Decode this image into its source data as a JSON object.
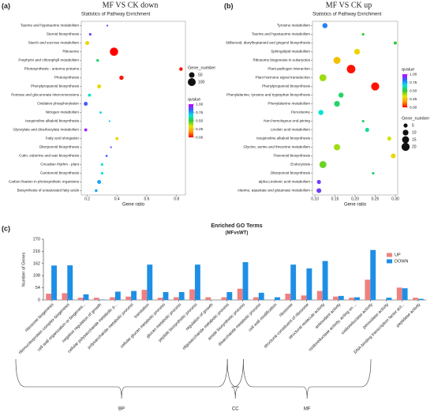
{
  "chart_data": [
    {
      "type": "scatter",
      "panel_label": "(a)",
      "title": "MF VS CK down",
      "subtitle": "Statistics of Pathway Enrichment",
      "x_label": "Gene ratio",
      "categories": [
        "Taurine and hypotaurine metabolism",
        "Steroid biosynthesis",
        "Starch and sucrose metabolism",
        "Ribosome",
        "Porphyrin and chlorophyll metabolism",
        "Photosynthesis - antenna proteins",
        "Photosynthesis",
        "Phenylpropanoid biosynthesis",
        "Pentose and glucuronate interconversions",
        "Oxidative phosphorylation",
        "Nitrogen metabolism",
        "Isoquinoline alkaloid biosynthesis",
        "Glyoxylate and dicarboxylate metabolism",
        "Fatty acid elongation",
        "Diterpenoid biosynthesis",
        "Cutin, suberine and wax biosynthesis",
        "Circadian rhythm - plant",
        "Carotenoid biosynthesis",
        "Carbon fixation in photosynthetic organisms",
        "Biosynthesis of unsaturated fatty acids"
      ],
      "x": [
        0.335,
        0.22,
        0.2,
        0.38,
        0.27,
        0.83,
        0.43,
        0.28,
        0.215,
        0.19,
        0.29,
        0.35,
        0.19,
        0.4,
        0.36,
        0.33,
        0.3,
        0.3,
        0.28,
        0.26
      ],
      "size": [
        5,
        10,
        25,
        110,
        12,
        20,
        30,
        25,
        15,
        25,
        8,
        5,
        15,
        15,
        5,
        7,
        10,
        10,
        25,
        12
      ],
      "qvalue": [
        0.9,
        0.9,
        0.3,
        0.0,
        0.55,
        0.02,
        0.02,
        0.3,
        0.65,
        0.85,
        0.7,
        0.7,
        0.95,
        0.3,
        0.9,
        0.85,
        0.65,
        0.65,
        0.75,
        0.75
      ],
      "xlim": [
        0.16,
        0.86
      ],
      "xticks": [
        0.2,
        0.4,
        0.6,
        0.8
      ],
      "size_title": "Gene_number",
      "size_legend": [
        50,
        100
      ],
      "color_title": "qvalue",
      "qlim": [
        0,
        1
      ],
      "qticks": [
        {
          "value": 0,
          "label": "0.00"
        },
        {
          "value": 0.25,
          "label": "0.25"
        },
        {
          "value": 0.5,
          "label": "0.50"
        },
        {
          "value": 0.75,
          "label": "0.75"
        },
        {
          "value": 1,
          "label": "1.00"
        }
      ],
      "colormap": [
        "#ff0000",
        "#ff9900",
        "#e6e600",
        "#33cc33",
        "#00e5e5",
        "#3366ff",
        "#cc00ff"
      ]
    },
    {
      "type": "scatter",
      "panel_label": "(b)",
      "title": "MF VS CK up",
      "subtitle": "Statistics of Pathway Enrichment",
      "x_label": "Gene ratio",
      "categories": [
        "Tyrosine metabolism",
        "Taurine and hypotaurine metabolism",
        "Stilbenoid, diarylheptanoid and gingerol biosynthesis",
        "Sphingolipid metabolism",
        "Ribosome biogenesis in eukaryotes",
        "Plant-pathogen interaction",
        "Plant hormone signal transduction",
        "Phenylpropanoid biosynthesis",
        "Phenylalanine, tyrosine and tryptophan biosynthesis",
        "Phenylalanine metabolism",
        "Peroxisome",
        "Non-homologous end-joining",
        "Linoleic acid metabolism",
        "Isoquinoline alkaloid biosynthesis",
        "Glycine, serine and threonine metabolism",
        "Flavonoid biosynthesis",
        "Endocytosis",
        "Diterpenoid biosynthesis",
        "alpha-Linolenic acid metabolism",
        "Alanine, aspartate and glutamate metabolism"
      ],
      "x": [
        0.125,
        0.22,
        0.3,
        0.205,
        0.155,
        0.19,
        0.12,
        0.25,
        0.165,
        0.155,
        0.115,
        0.22,
        0.23,
        0.285,
        0.155,
        0.295,
        0.12,
        0.245,
        0.11,
        0.11
      ],
      "size": [
        8,
        2,
        3,
        10,
        15,
        22,
        15,
        20,
        8,
        10,
        8,
        2,
        5,
        5,
        12,
        7,
        15,
        2,
        5,
        7
      ],
      "qvalue": [
        0.8,
        0.5,
        0.5,
        0.3,
        0.25,
        0.02,
        0.4,
        0.02,
        0.55,
        0.55,
        0.65,
        0.55,
        0.6,
        0.35,
        0.4,
        0.3,
        0.45,
        0.55,
        0.9,
        0.9
      ],
      "xlim": [
        0.094,
        0.306
      ],
      "xticks": [
        {
          "value": 0.1,
          "label": "0.10"
        },
        0.15,
        {
          "value": 0.2,
          "label": "0.20"
        },
        0.25,
        {
          "value": 0.3,
          "label": "0.30"
        }
      ],
      "size_title": "Gene_number",
      "size_legend": [
        5,
        10,
        15,
        20
      ],
      "color_title": "qvalue",
      "qlim": [
        0,
        1
      ],
      "qticks": [
        {
          "value": 0,
          "label": "0.00"
        },
        {
          "value": 0.25,
          "label": "0.25"
        },
        {
          "value": 0.5,
          "label": "0.50"
        },
        {
          "value": 0.75,
          "label": "0.75"
        },
        {
          "value": 1,
          "label": "1.00"
        }
      ],
      "colormap": [
        "#ff0000",
        "#ff9900",
        "#e6e600",
        "#33cc33",
        "#00e5e5",
        "#3366ff",
        "#cc00ff"
      ]
    },
    {
      "type": "bar",
      "panel_label": "(c)",
      "title": "Enriched GO Terms",
      "subtitle": "(MFvsWT)",
      "y_label": "Number of Genes",
      "categories": [
        "ribosome biogenesis",
        "ribonucleoprotein complex biogenesis",
        "cell wall organization or biogenesi...",
        "negative regulation of growth",
        "cellular polysaccharide metabolic p...",
        "polysaccharide metabolic process",
        "translation",
        "cellular glucan metabolic process",
        "glucan metabolic process",
        "peptide biosynthetic process",
        "regulation of growth",
        "oligosaccharide metabolic process",
        "amide biosynthetic process",
        "disaccharide metabolic process",
        "cell wall modification",
        "ribosome",
        "structural constituent of ribosome",
        "structural molecule activity",
        "antioxidant activity",
        "oxidoreductase activity, acting on ...",
        "oxidoreductase activity",
        "peroxidase activity",
        "DNA-binding transcription factor act...",
        "peptidase activity"
      ],
      "series": [
        {
          "name": "UP",
          "color": "#f08080",
          "values": [
            28,
            30,
            10,
            10,
            12,
            15,
            45,
            10,
            12,
            47,
            12,
            12,
            50,
            12,
            0,
            28,
            20,
            40,
            15,
            10,
            90,
            0,
            55,
            10
          ]
        },
        {
          "name": "DOWN",
          "color": "#1e8fe6",
          "values": [
            153,
            154,
            25,
            2,
            37,
            40,
            157,
            35,
            35,
            157,
            0,
            35,
            168,
            32,
            12,
            157,
            140,
            173,
            18,
            12,
            222,
            10,
            52,
            5
          ]
        }
      ],
      "ylim": [
        0,
        270
      ],
      "yticks": [
        0,
        54,
        108,
        162,
        216,
        270
      ],
      "groups": [
        {
          "name": "BP",
          "count": 15
        },
        {
          "name": "CC",
          "count": 1
        },
        {
          "name": "MF",
          "count": 8
        }
      ],
      "legend": "top-right"
    }
  ]
}
